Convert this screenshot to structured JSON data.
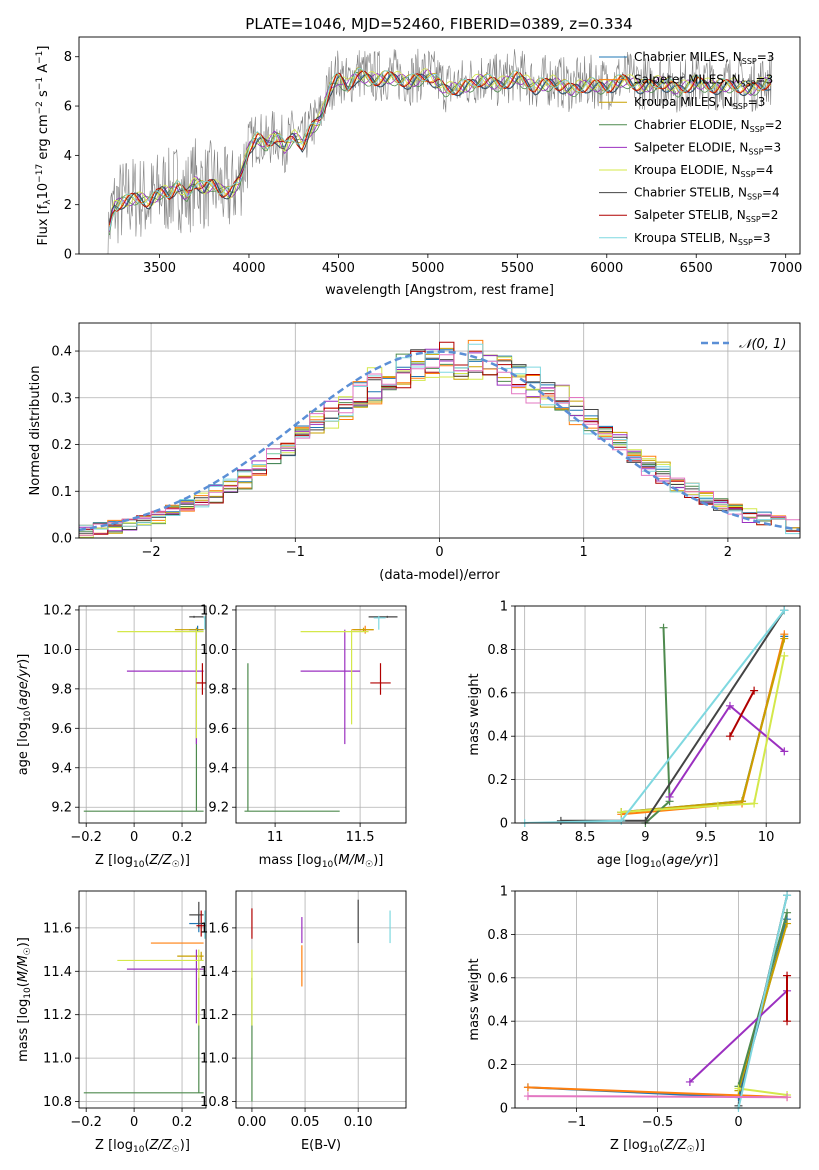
{
  "figure_title": "PLATE=1046, MJD=52460, FIBERID=0389, z=0.334",
  "series_styles": [
    {
      "name": "Chabrier MILES, N_SSP=3",
      "color": "#1f77b4"
    },
    {
      "name": "Salpeter MILES, N_SSP=3",
      "color": "#ff7f0e"
    },
    {
      "name": "Kroupa MILES, N_SSP=3",
      "color": "#c8a000"
    },
    {
      "name": "Chabrier ELODIE, N_SSP=2",
      "color": "#4e8a4e"
    },
    {
      "name": "Salpeter ELODIE, N_SSP=3",
      "color": "#9b30c0"
    },
    {
      "name": "Kroupa ELODIE, N_SSP=4",
      "color": "#d4e84a"
    },
    {
      "name": "Chabrier STELIB, N_SSP=4",
      "color": "#444444"
    },
    {
      "name": "Salpeter STELIB, N_SSP=2",
      "color": "#b00000"
    },
    {
      "name": "Kroupa STELIB, N_SSP=3",
      "color": "#7fd8e0"
    }
  ],
  "chart_data": [
    {
      "id": "spectrum",
      "type": "line",
      "xlabel": "wavelength [Angstrom, rest frame]",
      "ylabel": "Flux [f_λ10^-17 erg cm^-2 s^-1 A^-1]",
      "xlim": [
        3050,
        7080
      ],
      "ylim": [
        0,
        8.8
      ],
      "xticks": [
        3500,
        4000,
        4500,
        5000,
        5500,
        6000,
        6500,
        7000
      ],
      "yticks": [
        0,
        2,
        4,
        6,
        8
      ],
      "grid": false,
      "legend_position": "top-right",
      "legend": [
        {
          "text": "Chabrier MILES, N",
          "sub": "SSP",
          "suffix": "=3",
          "series": 0
        },
        {
          "text": "Salpeter MILES, N",
          "sub": "SSP",
          "suffix": "=3",
          "series": 1
        },
        {
          "text": "Kroupa MILES, N",
          "sub": "SSP",
          "suffix": "=3",
          "series": 2
        },
        {
          "text": "Chabrier ELODIE, N",
          "sub": "SSP",
          "suffix": "=2",
          "series": 3
        },
        {
          "text": "Salpeter ELODIE, N",
          "sub": "SSP",
          "suffix": "=3",
          "series": 4
        },
        {
          "text": "Kroupa ELODIE, N",
          "sub": "SSP",
          "suffix": "=4",
          "series": 5
        },
        {
          "text": "Chabrier STELIB, N",
          "sub": "SSP",
          "suffix": "=4",
          "series": 6
        },
        {
          "text": "Salpeter STELIB, N",
          "sub": "SSP",
          "suffix": "=2",
          "series": 7
        },
        {
          "text": "Kroupa STELIB, N",
          "sub": "SSP",
          "suffix": "=3",
          "series": 8
        }
      ],
      "data_wavelength": [
        3200,
        3240,
        3280,
        3320,
        3360,
        3400,
        3440,
        3480,
        3520,
        3560,
        3600,
        3650,
        3700,
        3750,
        3800,
        3850,
        3900,
        3950,
        4000,
        4050,
        4100,
        4150,
        4200,
        4250,
        4300,
        4350,
        4400,
        4450,
        4500,
        4550,
        4600,
        4700,
        4800,
        4900,
        5000,
        5100,
        5200,
        5300,
        5400,
        5500,
        5600,
        5700,
        5800,
        5900,
        6000,
        6100,
        6200,
        6300,
        6400,
        6500,
        6600,
        6700,
        6800,
        6900
      ],
      "data_flux": [
        0.2,
        1.9,
        2.1,
        2.2,
        2.3,
        2.3,
        2.1,
        2.4,
        2.6,
        2.5,
        2.8,
        2.4,
        3.0,
        2.7,
        2.9,
        2.6,
        2.5,
        3.1,
        4.4,
        4.8,
        4.5,
        4.9,
        4.4,
        4.9,
        4.5,
        5.2,
        5.6,
        6.8,
        7.3,
        6.9,
        7.4,
        7.2,
        7.3,
        7.1,
        7.4,
        6.8,
        6.9,
        7.2,
        7.0,
        7.3,
        6.9,
        7.1,
        6.8,
        7.0,
        6.9,
        7.2,
        6.9,
        7.1,
        6.8,
        7.1,
        6.9,
        7.0,
        6.8,
        7.1
      ]
    },
    {
      "id": "residuals",
      "type": "histogram",
      "xlabel": "(data-model)/error",
      "ylabel": "Normed distribution",
      "xlim": [
        -2.5,
        2.5
      ],
      "ylim": [
        0,
        0.46
      ],
      "xticks": [
        -2,
        -1,
        0,
        1,
        2
      ],
      "yticks": [
        0.0,
        0.1,
        0.2,
        0.3,
        0.4
      ],
      "grid": true,
      "legend_position": "top-right",
      "reference_label": "𝒩(0, 1)",
      "bin_width": 0.1,
      "bin_start": -2.5
    },
    {
      "id": "z_vs_age",
      "type": "errorbar",
      "xlabel": "Z [log10(Z/Z☉)]",
      "ylabel": "age [log10(age/yr)]",
      "xlim": [
        -0.23,
        0.3
      ],
      "ylim": [
        9.12,
        10.22
      ],
      "xticks": [
        -0.2,
        0.0,
        0.2
      ],
      "yticks": [
        9.2,
        9.4,
        9.6,
        9.8,
        10.0,
        10.2
      ],
      "grid": true,
      "points": [
        {
          "series": 0,
          "x": 0.265,
          "y": 10.1,
          "xlo": 0.23,
          "xhi": 0.29,
          "ylo": 10.09,
          "yhi": 10.12
        },
        {
          "series": 2,
          "x": 0.26,
          "y": 10.1,
          "xlo": 0.17,
          "xhi": 0.29,
          "ylo": 10.09,
          "yhi": 10.11
        },
        {
          "series": 3,
          "x": 0.26,
          "y": 9.18,
          "xlo": -0.21,
          "xhi": 0.29,
          "ylo": 9.18,
          "yhi": 10.1
        },
        {
          "series": 4,
          "x": 0.26,
          "y": 9.89,
          "xlo": -0.03,
          "xhi": 0.29,
          "ylo": 9.52,
          "yhi": 10.1
        },
        {
          "series": 5,
          "x": 0.26,
          "y": 10.09,
          "xlo": -0.07,
          "xhi": 0.29,
          "ylo": 9.55,
          "yhi": 10.1
        },
        {
          "series": 6,
          "x": 0.25,
          "y": 10.165,
          "xlo": 0.23,
          "xhi": 0.29,
          "ylo": 10.16,
          "yhi": 10.17
        },
        {
          "series": 7,
          "x": 0.285,
          "y": 9.83,
          "xlo": 0.26,
          "xhi": 0.3,
          "ylo": 9.77,
          "yhi": 9.93
        },
        {
          "series": 8,
          "x": 0.295,
          "y": 10.16,
          "xlo": 0.29,
          "xhi": 0.3,
          "ylo": 10.1,
          "yhi": 10.17
        }
      ]
    },
    {
      "id": "mass_vs_age",
      "type": "errorbar",
      "xlabel": "mass [log10(M/M☉)]",
      "ylabel": "",
      "xlim": [
        10.77,
        11.77
      ],
      "ylim": [
        9.12,
        10.22
      ],
      "xticks": [
        11.0,
        11.5
      ],
      "yticks": [
        9.2,
        9.4,
        9.6,
        9.8,
        10.0,
        10.2
      ],
      "grid": true,
      "points": [
        {
          "series": 1,
          "x": 11.53,
          "y": 10.1,
          "xlo": 11.45,
          "xhi": 11.58,
          "ylo": 10.08,
          "yhi": 10.12
        },
        {
          "series": 2,
          "x": 11.52,
          "y": 10.1,
          "xlo": 11.46,
          "xhi": 11.58,
          "ylo": 10.09,
          "yhi": 10.11
        },
        {
          "series": 3,
          "x": 10.84,
          "y": 9.18,
          "xlo": 10.82,
          "xhi": 11.38,
          "ylo": 9.18,
          "yhi": 9.93
        },
        {
          "series": 4,
          "x": 11.41,
          "y": 9.89,
          "xlo": 11.15,
          "xhi": 11.5,
          "ylo": 9.52,
          "yhi": 10.1
        },
        {
          "series": 5,
          "x": 11.45,
          "y": 10.09,
          "xlo": 11.15,
          "xhi": 11.55,
          "ylo": 9.62,
          "yhi": 10.1
        },
        {
          "series": 6,
          "x": 11.66,
          "y": 10.165,
          "xlo": 11.55,
          "xhi": 11.72,
          "ylo": 10.16,
          "yhi": 10.17
        },
        {
          "series": 7,
          "x": 11.62,
          "y": 9.83,
          "xlo": 11.56,
          "xhi": 11.68,
          "ylo": 9.77,
          "yhi": 9.93
        },
        {
          "series": 8,
          "x": 11.61,
          "y": 10.16,
          "xlo": 11.58,
          "xhi": 11.65,
          "ylo": 10.1,
          "yhi": 10.17
        }
      ]
    },
    {
      "id": "age_vs_weight",
      "type": "line",
      "xlabel": "age [log10(age/yr)]",
      "ylabel": "mass weight",
      "xlim": [
        7.92,
        10.28
      ],
      "ylim": [
        0.0,
        1.0
      ],
      "xticks": [
        8.0,
        8.5,
        9.0,
        9.5,
        10.0
      ],
      "yticks": [
        0.0,
        0.2,
        0.4,
        0.6,
        0.8,
        1.0
      ],
      "grid": true,
      "series_points": [
        {
          "series": 0,
          "x": [
            8.8,
            9.8,
            10.15
          ],
          "y": [
            0.05,
            0.1,
            0.86
          ]
        },
        {
          "series": 1,
          "x": [
            8.8,
            9.8,
            10.15
          ],
          "y": [
            0.04,
            0.09,
            0.87
          ]
        },
        {
          "series": 2,
          "x": [
            8.8,
            9.8,
            10.15
          ],
          "y": [
            0.05,
            0.1,
            0.85
          ]
        },
        {
          "series": 3,
          "x": [
            9.15,
            9.2,
            9.0
          ],
          "y": [
            0.9,
            0.1,
            0.0
          ]
        },
        {
          "series": 4,
          "x": [
            9.2,
            9.7,
            10.15
          ],
          "y": [
            0.12,
            0.54,
            0.33
          ]
        },
        {
          "series": 5,
          "x": [
            8.8,
            9.6,
            9.9,
            10.15
          ],
          "y": [
            0.05,
            0.08,
            0.09,
            0.77
          ]
        },
        {
          "series": 6,
          "x": [
            8.3,
            9.0,
            10.15
          ],
          "y": [
            0.01,
            0.01,
            0.98
          ]
        },
        {
          "series": 7,
          "x": [
            9.7,
            9.9
          ],
          "y": [
            0.4,
            0.61
          ]
        },
        {
          "series": 8,
          "x": [
            8.0,
            8.8,
            10.15
          ],
          "y": [
            0.0,
            0.01,
            0.98
          ]
        }
      ]
    },
    {
      "id": "z_vs_mass",
      "type": "errorbar",
      "xlabel": "Z [log10(Z/Z☉)]",
      "ylabel": "mass [log10(M/M☉)]",
      "xlim": [
        -0.23,
        0.3
      ],
      "ylim": [
        10.77,
        11.77
      ],
      "xticks": [
        -0.2,
        0.0,
        0.2
      ],
      "yticks": [
        10.8,
        11.0,
        11.2,
        11.4,
        11.6
      ],
      "grid": true,
      "points": [
        {
          "series": 0,
          "x": 0.27,
          "y": 11.62,
          "xlo": 0.23,
          "xhi": 0.29,
          "ylo": 11.58,
          "yhi": 11.66
        },
        {
          "series": 2,
          "x": 0.28,
          "y": 11.47,
          "xlo": 0.18,
          "xhi": 0.29,
          "ylo": 11.45,
          "yhi": 11.49
        },
        {
          "series": 3,
          "x": 0.27,
          "y": 10.84,
          "xlo": -0.21,
          "xhi": 0.29,
          "ylo": 10.84,
          "yhi": 11.37
        },
        {
          "series": 4,
          "x": 0.26,
          "y": 11.41,
          "xlo": -0.03,
          "xhi": 0.29,
          "ylo": 11.16,
          "yhi": 11.5
        },
        {
          "series": 5,
          "x": 0.27,
          "y": 11.45,
          "xlo": -0.07,
          "xhi": 0.29,
          "ylo": 11.15,
          "yhi": 11.5
        },
        {
          "series": 6,
          "x": 0.27,
          "y": 11.66,
          "xlo": 0.23,
          "xhi": 0.29,
          "ylo": 11.6,
          "yhi": 11.72
        },
        {
          "series": 7,
          "x": 0.28,
          "y": 11.61,
          "xlo": 0.26,
          "xhi": 0.3,
          "ylo": 11.56,
          "yhi": 11.68
        },
        {
          "series": 8,
          "x": 0.295,
          "y": 11.62,
          "xlo": 0.28,
          "xhi": 0.3,
          "ylo": 11.55,
          "yhi": 11.68
        },
        {
          "series": 1,
          "x": 0.25,
          "y": 11.53,
          "xlo": 0.07,
          "xhi": 0.29,
          "ylo": 11.53,
          "yhi": 11.53
        }
      ]
    },
    {
      "id": "ebv_vs_mass",
      "type": "errorbar",
      "xlabel": "E(B-V)",
      "ylabel": "",
      "xlim": [
        -0.015,
        0.145
      ],
      "ylim": [
        10.77,
        11.77
      ],
      "xticks": [
        0.0,
        0.05,
        0.1
      ],
      "xticklabels": [
        "0.00",
        "0.05",
        "0.10"
      ],
      "yticks": [
        10.8,
        11.0,
        11.2,
        11.4,
        11.6
      ],
      "grid": true,
      "points": [
        {
          "series": 3,
          "x": 0.0,
          "y": 10.84,
          "xlo": 0.0,
          "xhi": 0.0,
          "ylo": 10.8,
          "yhi": 11.37
        },
        {
          "series": 5,
          "x": 0.0,
          "y": 11.45,
          "xlo": 0.0,
          "xhi": 0.0,
          "ylo": 11.15,
          "yhi": 11.5
        },
        {
          "series": 7,
          "x": 0.0,
          "y": 11.62,
          "xlo": 0.0,
          "xhi": 0.0,
          "ylo": 11.55,
          "yhi": 11.69
        },
        {
          "series": 1,
          "x": 0.047,
          "y": 11.42,
          "xlo": 0.047,
          "xhi": 0.047,
          "ylo": 11.33,
          "yhi": 11.52
        },
        {
          "series": 4,
          "x": 0.047,
          "y": 11.58,
          "xlo": 0.047,
          "xhi": 0.047,
          "ylo": 11.53,
          "yhi": 11.65
        },
        {
          "series": 6,
          "x": 0.1,
          "y": 11.63,
          "xlo": 0.1,
          "xhi": 0.1,
          "ylo": 11.53,
          "yhi": 11.73
        },
        {
          "series": 8,
          "x": 0.13,
          "y": 11.6,
          "xlo": 0.13,
          "xhi": 0.13,
          "ylo": 11.53,
          "yhi": 11.68
        }
      ]
    },
    {
      "id": "z_vs_weight",
      "type": "line",
      "xlabel": "Z [log10(Z/Z☉)]",
      "ylabel": "mass weight",
      "xlim": [
        -1.38,
        0.38
      ],
      "ylim": [
        0.0,
        1.0
      ],
      "xticks": [
        -1.0,
        -0.5,
        0.0
      ],
      "yticks": [
        0.0,
        0.2,
        0.4,
        0.6,
        0.8,
        1.0
      ],
      "grid": true,
      "series_points": [
        {
          "series": 0,
          "x": [
            -1.3,
            0.0,
            0.3
          ],
          "y": [
            0.095,
            0.05,
            0.87
          ]
        },
        {
          "series": 1,
          "x": [
            -1.3,
            0.3
          ],
          "y": [
            0.095,
            0.05
          ]
        },
        {
          "series": 2,
          "x": [
            0.0,
            0.3
          ],
          "y": [
            0.08,
            0.85
          ]
        },
        {
          "series": 3,
          "x": [
            0.0,
            0.3
          ],
          "y": [
            0.1,
            0.9
          ]
        },
        {
          "series": 4,
          "x": [
            -0.3,
            0.3
          ],
          "y": [
            0.12,
            0.54
          ]
        },
        {
          "series": 5,
          "x": [
            0.0,
            0.3
          ],
          "y": [
            0.09,
            0.06
          ]
        },
        {
          "series": 6,
          "x": [
            0.0,
            0.3
          ],
          "y": [
            0.01,
            0.98
          ]
        },
        {
          "series": 7,
          "x": [
            0.3,
            0.3
          ],
          "y": [
            0.4,
            0.61
          ]
        },
        {
          "series": 8,
          "x": [
            0.0,
            0.3
          ],
          "y": [
            0.0,
            0.98
          ]
        },
        {
          "series": 9,
          "x": [
            -1.3,
            0.3
          ],
          "y": [
            0.055,
            0.05
          ]
        }
      ]
    }
  ],
  "extra_colors": {
    "pink": "#e377c2",
    "gray_spectrum": "#808080",
    "normal_curve": "#5b8fd6"
  }
}
